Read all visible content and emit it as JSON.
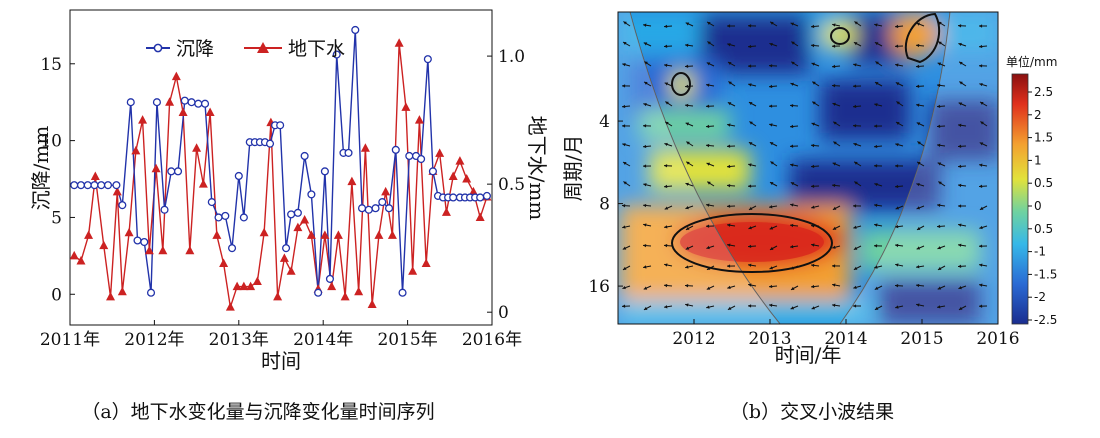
{
  "chart_data": [
    {
      "type": "line",
      "xlabel": "时间",
      "ylabel_left": "沉降/mm",
      "ylabel_right": "地下水/mm",
      "x_ticks": [
        "2011年",
        "2012年",
        "2013年",
        "2014年",
        "2015年",
        "2016年"
      ],
      "xlim": [
        2011,
        2016
      ],
      "y_left_ticks": [
        "0",
        "5",
        "10",
        "15"
      ],
      "ylim_left": [
        -2,
        18.5
      ],
      "y_right_ticks": [
        "0",
        "0.5",
        "1.0"
      ],
      "ylim_right": [
        -0.05,
        1.18
      ],
      "legend_position": "top-center",
      "colors": {
        "settlement": "#2233aa",
        "groundwater": "#cc2222"
      },
      "series": [
        {
          "name": "沉降",
          "axis": "left",
          "marker": "open-circle",
          "x": [
            2011.05,
            2011.13,
            2011.21,
            2011.29,
            2011.37,
            2011.45,
            2011.55,
            2011.62,
            2011.72,
            2011.8,
            2011.88,
            2011.96,
            2012.03,
            2012.12,
            2012.2,
            2012.28,
            2012.36,
            2012.44,
            2012.52,
            2012.6,
            2012.68,
            2012.76,
            2012.84,
            2012.92,
            2013.0,
            2013.06,
            2013.13,
            2013.19,
            2013.25,
            2013.31,
            2013.37,
            2013.43,
            2013.49,
            2013.56,
            2013.62,
            2013.7,
            2013.78,
            2013.86,
            2013.94,
            2014.02,
            2014.08,
            2014.16,
            2014.24,
            2014.3,
            2014.38,
            2014.46,
            2014.54,
            2014.62,
            2014.7,
            2014.78,
            2014.86,
            2014.94,
            2015.02,
            2015.1,
            2015.16,
            2015.24,
            2015.3,
            2015.36,
            2015.42,
            2015.48,
            2015.54,
            2015.62,
            2015.68,
            2015.74,
            2015.8,
            2015.86,
            2015.94
          ],
          "values": [
            7.1,
            7.1,
            7.1,
            7.1,
            7.1,
            7.1,
            7.1,
            5.8,
            12.5,
            3.5,
            3.4,
            0.1,
            12.5,
            5.5,
            8.0,
            8.0,
            12.6,
            12.5,
            12.4,
            12.4,
            6.0,
            5.0,
            5.1,
            3.0,
            7.7,
            5.0,
            9.9,
            9.9,
            9.9,
            9.9,
            9.8,
            11.0,
            11.0,
            3.0,
            5.2,
            5.3,
            9.0,
            6.5,
            0.1,
            8.0,
            1.0,
            15.6,
            9.2,
            9.2,
            17.2,
            5.6,
            5.5,
            5.6,
            6.0,
            5.6,
            9.4,
            0.1,
            9.0,
            9.0,
            8.8,
            15.3,
            8.0,
            6.4,
            6.3,
            6.3,
            6.3,
            6.3,
            6.3,
            6.3,
            6.3,
            6.3,
            6.4
          ]
        },
        {
          "name": "地下水",
          "axis": "right",
          "marker": "filled-triangle",
          "x": [
            2011.05,
            2011.13,
            2011.22,
            2011.3,
            2011.4,
            2011.48,
            2011.56,
            2011.62,
            2011.7,
            2011.78,
            2011.86,
            2011.94,
            2012.02,
            2012.1,
            2012.18,
            2012.26,
            2012.34,
            2012.42,
            2012.5,
            2012.58,
            2012.66,
            2012.74,
            2012.82,
            2012.9,
            2012.98,
            2013.06,
            2013.14,
            2013.22,
            2013.3,
            2013.38,
            2013.46,
            2013.54,
            2013.62,
            2013.7,
            2013.78,
            2013.86,
            2013.94,
            2014.02,
            2014.1,
            2014.18,
            2014.26,
            2014.34,
            2014.42,
            2014.5,
            2014.58,
            2014.66,
            2014.74,
            2014.82,
            2014.9,
            2014.98,
            2015.06,
            2015.14,
            2015.22,
            2015.3,
            2015.38,
            2015.46,
            2015.54,
            2015.62,
            2015.7,
            2015.78,
            2015.86,
            2015.94
          ],
          "values": [
            0.22,
            0.2,
            0.3,
            0.53,
            0.26,
            0.06,
            0.47,
            0.08,
            0.31,
            0.63,
            0.75,
            0.24,
            0.56,
            0.24,
            0.82,
            0.92,
            0.78,
            0.24,
            0.64,
            0.5,
            0.78,
            0.3,
            0.19,
            0.02,
            0.1,
            0.1,
            0.1,
            0.12,
            0.31,
            0.74,
            0.06,
            0.21,
            0.16,
            0.33,
            0.36,
            0.3,
            0.09,
            0.3,
            0.1,
            0.3,
            0.06,
            0.51,
            0.08,
            0.64,
            0.03,
            0.3,
            0.47,
            0.3,
            1.05,
            0.8,
            0.16,
            0.75,
            0.19,
            0.55,
            0.62,
            0.39,
            0.53,
            0.59,
            0.52,
            0.47,
            0.37,
            0.45
          ]
        }
      ],
      "caption": "（a）地下水变化量与沉降变化量时间序列"
    },
    {
      "type": "heatmap",
      "xlabel": "时间/年",
      "ylabel": "周期/月",
      "x_ticks": [
        "2012",
        "2013",
        "2014",
        "2015",
        "2016"
      ],
      "xlim": [
        2011.0,
        2016.0
      ],
      "y_ticks": [
        "4",
        "8",
        "16"
      ],
      "y_scale": "log2",
      "ylim": [
        1.6,
        22.0
      ],
      "colorbar": {
        "title": "单位/mm",
        "ticks": [
          "2.5",
          "2",
          "1.5",
          "1",
          "0.5",
          "0",
          "0.5",
          "-1",
          "-1.5",
          "-2",
          "-2.5"
        ],
        "range": [
          -2.8,
          2.8
        ],
        "colors": [
          "#1a2d8f",
          "#2a6ad4",
          "#36b8e8",
          "#6fd2a0",
          "#e2e23a",
          "#f3a030",
          "#e0301c",
          "#8a1010"
        ]
      },
      "arrows": "phase-direction-field",
      "caption": "（b）交叉小波结果"
    }
  ]
}
